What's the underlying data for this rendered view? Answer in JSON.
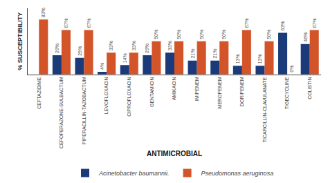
{
  "chart_data": {
    "type": "bar",
    "xlabel": "ANTIMICROBIAL",
    "ylabel": "% SUSCEPTIBILITY",
    "categories": [
      "CEFTAZIDIME",
      "CEFOPERAZONE-SULBACTUM",
      "PIPERACILLIN-TAZOBACTUM",
      "LEVOFLOXACIN",
      "CIPROFLOXACIN",
      "GENTAMICIN",
      "AMIKACIN",
      "IMIPENEM",
      "MEROPENEM",
      "DORIPENEM",
      "TICARCILLIN-CLAVULANATE",
      "TIGECYCLINE",
      "COLISTIN"
    ],
    "series": [
      {
        "name": "Acinetobacter baumannii.",
        "color": "#1a3a7a",
        "values": [
          0,
          29,
          25,
          4,
          14,
          29,
          33,
          21,
          21,
          13,
          13,
          63,
          46
        ],
        "value_labels": [
          null,
          "29%",
          "25%",
          "4%",
          "14%",
          "29%",
          "33%",
          "21%",
          "21%",
          "13%",
          "13%",
          "63%",
          "46%"
        ]
      },
      {
        "name": "Pseudomonas aeruginosa",
        "color": "#d4542a",
        "values": [
          83,
          67,
          67,
          33,
          33,
          50,
          50,
          50,
          50,
          67,
          50,
          0,
          67
        ],
        "value_labels": [
          "83%",
          "67%",
          "67%",
          "33%",
          "33%",
          "50%",
          "50%",
          "50%",
          "50%",
          "67%",
          "50%",
          "0%",
          "67%"
        ]
      }
    ],
    "ylim": [
      0,
      100
    ],
    "grid": false,
    "legend": "bottom",
    "data_labels": true,
    "tick_labels": "x"
  }
}
